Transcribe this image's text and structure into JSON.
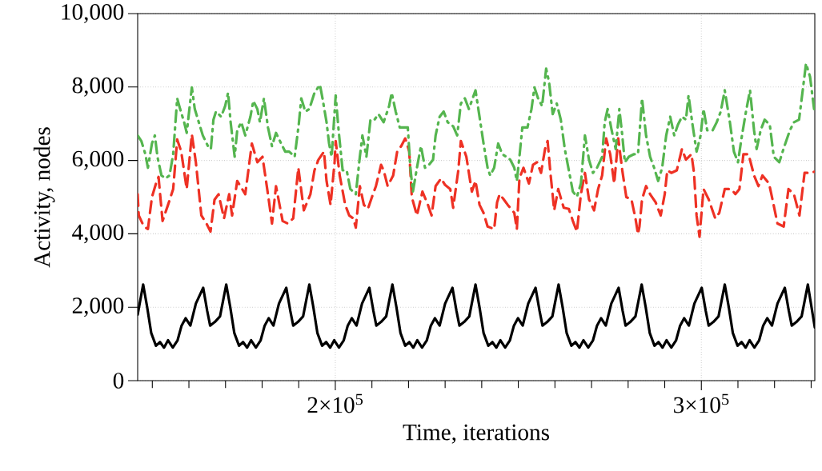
{
  "chart_data": {
    "type": "line",
    "xlabel": "Time, iterations",
    "ylabel": "Activity, nodes",
    "xlim": [
      146000,
      331000
    ],
    "ylim": [
      0,
      10000
    ],
    "xticks": [
      {
        "value": 150000,
        "label": null
      },
      {
        "value": 160000,
        "label": null
      },
      {
        "value": 170000,
        "label": null
      },
      {
        "value": 180000,
        "label": null
      },
      {
        "value": 190000,
        "label": null
      },
      {
        "value": 200000,
        "label": "2×10$^{5}$"
      },
      {
        "value": 210000,
        "label": null
      },
      {
        "value": 220000,
        "label": null
      },
      {
        "value": 230000,
        "label": null
      },
      {
        "value": 240000,
        "label": null
      },
      {
        "value": 250000,
        "label": null
      },
      {
        "value": 260000,
        "label": null
      },
      {
        "value": 270000,
        "label": null
      },
      {
        "value": 280000,
        "label": null
      },
      {
        "value": 290000,
        "label": null
      },
      {
        "value": 300000,
        "label": "3×10$^{5}$"
      },
      {
        "value": 310000,
        "label": null
      },
      {
        "value": 320000,
        "label": null
      },
      {
        "value": 330000,
        "label": null
      }
    ],
    "yticks": [
      0,
      {
        "value": 2000,
        "label": "2,000"
      },
      {
        "value": 4000,
        "label": "4,000"
      },
      {
        "value": 6000,
        "label": "6,000"
      },
      {
        "value": 8000,
        "label": "8,000"
      },
      {
        "value": 10000,
        "label": "10,000"
      }
    ],
    "grid": true,
    "marker": "none",
    "series": [
      {
        "color": "#000000",
        "line_style": "solid",
        "x": [
          146000,
          147500,
          148600,
          149700,
          151000,
          152100,
          153200,
          154300,
          155600,
          156900,
          158000,
          159100,
          160400,
          161900,
          163900,
          165000,
          165800,
          167100,
          168500,
          170200,
          171300,
          172400,
          173700,
          174800,
          175900,
          177000,
          178300,
          179600,
          180700,
          181800,
          183100,
          184600,
          186600,
          187700,
          188500,
          189800,
          191200,
          192900,
          194000,
          195100,
          196400,
          197500,
          198600,
          199700,
          201000,
          202300,
          203400,
          204500,
          205800,
          207300,
          209300,
          210400,
          211200,
          212500,
          213900,
          215600,
          216700,
          217800,
          219100,
          220200,
          221300,
          222400,
          223700,
          225000,
          226100,
          227200,
          228500,
          230000,
          232000,
          233100,
          233900,
          235200,
          236600,
          238300,
          239400,
          240500,
          241800,
          242900,
          244000,
          245100,
          246400,
          247700,
          248800,
          249900,
          251200,
          252700,
          254700,
          255800,
          256600,
          257900,
          259300,
          261000,
          262100,
          263200,
          264500,
          265600,
          266700,
          267800,
          269100,
          270400,
          271500,
          272600,
          273900,
          275400,
          277400,
          278500,
          279300,
          280600,
          282000,
          283700,
          284800,
          285900,
          287200,
          288300,
          289400,
          290500,
          291800,
          293100,
          294200,
          295300,
          296600,
          298100,
          300100,
          301200,
          302000,
          303300,
          304700,
          306400,
          307500,
          308600,
          309900,
          311000,
          312100,
          313200,
          314500,
          315800,
          316900,
          318000,
          319300,
          320800,
          322800,
          323900,
          324700,
          326000,
          327400,
          329100,
          331000
        ],
        "values": [
          1800,
          2620,
          2000,
          1300,
          950,
          1050,
          900,
          1100,
          900,
          1100,
          1500,
          1700,
          1500,
          2100,
          2530,
          1900,
          1500,
          1600,
          1750,
          2620,
          2000,
          1300,
          950,
          1050,
          900,
          1100,
          900,
          1100,
          1500,
          1700,
          1500,
          2100,
          2530,
          1900,
          1500,
          1600,
          1750,
          2620,
          2000,
          1300,
          950,
          1050,
          900,
          1100,
          900,
          1100,
          1500,
          1700,
          1500,
          2100,
          2530,
          1900,
          1500,
          1600,
          1750,
          2620,
          2000,
          1300,
          950,
          1050,
          900,
          1100,
          900,
          1100,
          1500,
          1700,
          1500,
          2100,
          2530,
          1900,
          1500,
          1600,
          1750,
          2620,
          2000,
          1300,
          950,
          1050,
          900,
          1100,
          900,
          1100,
          1500,
          1700,
          1500,
          2100,
          2530,
          1900,
          1500,
          1600,
          1750,
          2620,
          2000,
          1300,
          950,
          1050,
          900,
          1100,
          900,
          1100,
          1500,
          1700,
          1500,
          2100,
          2530,
          1900,
          1500,
          1600,
          1750,
          2620,
          2000,
          1300,
          950,
          1050,
          900,
          1100,
          900,
          1100,
          1500,
          1700,
          1500,
          2100,
          2530,
          1900,
          1500,
          1600,
          1750,
          2620,
          2000,
          1300,
          950,
          1050,
          900,
          1100,
          900,
          1100,
          1500,
          1700,
          1500,
          2100,
          2530,
          1900,
          1500,
          1600,
          1750,
          2620,
          1450
        ]
      },
      {
        "color": "#ee3124",
        "line_style": "dashed",
        "x": [
          146000,
          146300,
          147700,
          148800,
          149900,
          151000,
          151700,
          152800,
          154300,
          155700,
          156800,
          157900,
          159400,
          160800,
          161900,
          163400,
          164800,
          165900,
          167000,
          168100,
          169600,
          171000,
          171800,
          173200,
          175400,
          177200,
          178700,
          180100,
          181600,
          182700,
          183800,
          185600,
          187000,
          188500,
          189900,
          191400,
          193200,
          194300,
          195400,
          196900,
          197600,
          198700,
          199800,
          200100,
          201200,
          202700,
          203800,
          204900,
          205600,
          206700,
          207800,
          208900,
          210000,
          211100,
          212500,
          213200,
          214300,
          215800,
          216900,
          218000,
          219100,
          220200,
          220900,
          222300,
          223800,
          225300,
          226300,
          227400,
          228900,
          230000,
          231400,
          232200,
          233600,
          234300,
          235800,
          237300,
          238300,
          239400,
          240500,
          241600,
          243400,
          244200,
          244900,
          246000,
          247100,
          248900,
          249600,
          250300,
          251400,
          252900,
          254000,
          255100,
          256200,
          257300,
          258000,
          258700,
          259800,
          260900,
          262400,
          263800,
          264900,
          266000,
          267100,
          268200,
          269300,
          270700,
          271800,
          272900,
          274000,
          275100,
          276200,
          277300,
          278400,
          279500,
          280900,
          282000,
          282700,
          283100,
          283800,
          284900,
          286000,
          287500,
          288900,
          290000,
          290700,
          291800,
          293300,
          294700,
          295800,
          297300,
          298000,
          298700,
          299500,
          300600,
          302000,
          303800,
          304900,
          306400,
          308200,
          309300,
          310400,
          311500,
          312900,
          314400,
          315600,
          316700,
          318500,
          319600,
          320800,
          322500,
          323800,
          325300,
          326800,
          327500,
          328200,
          329700,
          330800
        ],
        "values": [
          5080,
          4500,
          4200,
          4130,
          5000,
          5370,
          5550,
          4350,
          4790,
          5220,
          6570,
          6240,
          5220,
          6710,
          5950,
          4500,
          4280,
          4060,
          4930,
          5080,
          4420,
          5080,
          4500,
          5440,
          5080,
          6460,
          5950,
          6100,
          5080,
          4280,
          5300,
          4350,
          4280,
          4420,
          5800,
          4640,
          5080,
          5730,
          6020,
          6240,
          5440,
          4790,
          5950,
          6530,
          5590,
          4790,
          4500,
          4420,
          4170,
          5300,
          4790,
          4680,
          5000,
          5300,
          5880,
          5730,
          5300,
          5590,
          6240,
          6390,
          6600,
          6240,
          5000,
          4500,
          5150,
          4790,
          4500,
          5300,
          5510,
          5330,
          5220,
          4710,
          5730,
          6530,
          6100,
          5150,
          5440,
          4790,
          4570,
          4200,
          4130,
          4860,
          5080,
          4940,
          4790,
          4570,
          4130,
          5510,
          5800,
          5370,
          5880,
          5950,
          5660,
          6310,
          6530,
          5730,
          4640,
          5220,
          4710,
          4680,
          4350,
          4060,
          5080,
          5660,
          4940,
          4640,
          5220,
          5590,
          6600,
          6170,
          5370,
          6600,
          5730,
          5000,
          4940,
          4420,
          3990,
          4200,
          4940,
          5300,
          5080,
          4860,
          4500,
          5080,
          5730,
          5660,
          5730,
          6310,
          6020,
          6170,
          5660,
          4500,
          3920,
          5220,
          4940,
          4420,
          4570,
          5220,
          5220,
          5080,
          5220,
          6170,
          6170,
          5590,
          5300,
          5590,
          5370,
          4860,
          4280,
          4200,
          5220,
          5080,
          4500,
          5080,
          5660,
          5660,
          5690
        ]
      },
      {
        "color": "#55b54f",
        "line_style": "dashdot",
        "x": [
          146000,
          147000,
          148100,
          148800,
          149900,
          150700,
          151400,
          152500,
          153600,
          154700,
          155700,
          156800,
          157600,
          158700,
          159400,
          160800,
          161600,
          162700,
          163800,
          165200,
          166000,
          166700,
          167400,
          168800,
          169900,
          170700,
          171400,
          172500,
          173200,
          174300,
          175400,
          176800,
          177600,
          178700,
          179400,
          180500,
          181600,
          182700,
          183800,
          185200,
          186300,
          187400,
          188900,
          190000,
          190700,
          191800,
          192900,
          194300,
          195800,
          196500,
          197600,
          198300,
          199000,
          200100,
          200900,
          202000,
          203100,
          204100,
          205600,
          206700,
          207400,
          208500,
          209600,
          210700,
          211800,
          213200,
          214700,
          215400,
          216500,
          217600,
          219100,
          219800,
          220500,
          221200,
          222300,
          223400,
          224500,
          225600,
          226700,
          227400,
          228500,
          229600,
          230700,
          232200,
          233300,
          234300,
          235400,
          236500,
          238300,
          239400,
          240500,
          241600,
          242300,
          243400,
          244500,
          245600,
          246700,
          247800,
          248900,
          249600,
          250300,
          251100,
          252500,
          253600,
          254400,
          255400,
          256500,
          257600,
          258400,
          259400,
          260500,
          261600,
          262700,
          263800,
          264900,
          266000,
          267100,
          268200,
          269300,
          270400,
          271500,
          272900,
          273600,
          274400,
          275500,
          276600,
          277600,
          278400,
          279100,
          280200,
          281600,
          282700,
          283800,
          284900,
          286000,
          287100,
          288200,
          289300,
          290400,
          291500,
          292600,
          293600,
          294700,
          295800,
          296500,
          297600,
          298700,
          299800,
          300600,
          301600,
          303100,
          304200,
          305300,
          306400,
          307800,
          308900,
          310000,
          311100,
          312200,
          313300,
          314400,
          315100,
          316200,
          317300,
          318700,
          319800,
          321300,
          322700,
          324200,
          325300,
          326700,
          327800,
          328600,
          329700,
          330800
        ],
        "values": [
          6680,
          6530,
          6170,
          5800,
          6460,
          6680,
          6100,
          5590,
          5510,
          5590,
          6170,
          7690,
          7400,
          7040,
          6750,
          7990,
          7400,
          7040,
          6680,
          6390,
          6310,
          7110,
          7330,
          7190,
          7480,
          7840,
          7040,
          6100,
          6820,
          7040,
          6680,
          7190,
          7620,
          7400,
          7040,
          7690,
          6900,
          6390,
          6750,
          6460,
          6240,
          6240,
          6100,
          6970,
          7690,
          7330,
          7400,
          7840,
          8060,
          7690,
          7040,
          6460,
          6100,
          7770,
          6820,
          5730,
          5730,
          5220,
          5080,
          6100,
          6680,
          6100,
          7110,
          7110,
          7260,
          7040,
          7480,
          7840,
          7330,
          6900,
          6900,
          6900,
          5800,
          5150,
          5800,
          6390,
          5800,
          5880,
          6020,
          6680,
          7190,
          7330,
          7040,
          6930,
          6680,
          7550,
          7690,
          7400,
          7910,
          7190,
          6460,
          5800,
          5590,
          5800,
          6460,
          6170,
          6100,
          6020,
          5800,
          5440,
          6100,
          6900,
          6900,
          7400,
          7990,
          7690,
          7480,
          8500,
          8130,
          7260,
          7550,
          7110,
          6310,
          5730,
          5150,
          5010,
          5370,
          6680,
          6020,
          5660,
          5800,
          6100,
          7040,
          7400,
          6820,
          6310,
          7400,
          6680,
          5950,
          6100,
          6170,
          6170,
          7690,
          6680,
          6100,
          5800,
          5440,
          5800,
          6680,
          7190,
          6680,
          6970,
          7190,
          7110,
          7770,
          6970,
          6240,
          6680,
          7400,
          6820,
          6820,
          7040,
          7330,
          7910,
          7040,
          6240,
          5950,
          6680,
          7330,
          7910,
          6820,
          6310,
          6820,
          7110,
          6970,
          6100,
          5950,
          6390,
          6820,
          7040,
          7110,
          7990,
          8640,
          8280,
          7400
        ]
      }
    ]
  }
}
